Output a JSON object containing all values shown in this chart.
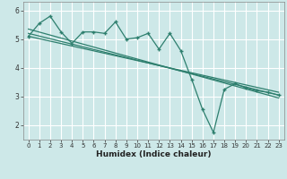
{
  "xlabel": "Humidex (Indice chaleur)",
  "xlim": [
    -0.5,
    23.5
  ],
  "ylim": [
    1.5,
    6.3
  ],
  "xticks": [
    0,
    1,
    2,
    3,
    4,
    5,
    6,
    7,
    8,
    9,
    10,
    11,
    12,
    13,
    14,
    15,
    16,
    17,
    18,
    19,
    20,
    21,
    22,
    23
  ],
  "yticks": [
    2,
    3,
    4,
    5,
    6
  ],
  "bg_color": "#cde8e8",
  "grid_color": "#ffffff",
  "line_color": "#2e7f6e",
  "data_x": [
    0,
    1,
    2,
    3,
    4,
    5,
    6,
    7,
    8,
    9,
    10,
    11,
    12,
    13,
    14,
    15,
    16,
    17,
    18,
    19,
    20,
    21,
    22,
    23
  ],
  "data_y": [
    5.1,
    5.55,
    5.8,
    5.25,
    4.85,
    5.25,
    5.25,
    5.2,
    5.6,
    5.0,
    5.05,
    5.2,
    4.65,
    5.2,
    4.6,
    3.6,
    2.55,
    1.75,
    3.25,
    3.45,
    3.3,
    3.2,
    3.15,
    3.05
  ],
  "trend1_x": [
    0,
    23
  ],
  "trend1_y": [
    5.2,
    3.05
  ],
  "trend2_x": [
    0,
    23
  ],
  "trend2_y": [
    5.35,
    2.95
  ],
  "trend3_x": [
    0,
    23
  ],
  "trend3_y": [
    5.1,
    3.15
  ]
}
